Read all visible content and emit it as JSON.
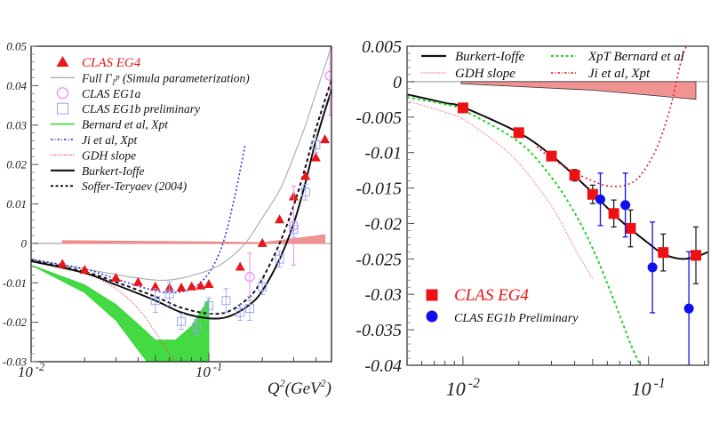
{
  "chart_data": [
    {
      "type": "scatter",
      "title": "",
      "xlabel": "Q^2(GeV^2)",
      "ylabel": "",
      "xscale": "log",
      "xlim": [
        0.01,
        0.49
      ],
      "ylim": [
        -0.03,
        0.05
      ],
      "yticks": [
        "0.05",
        "0.04",
        "0.03",
        "0.02",
        "0.01",
        "0",
        "-0.01",
        "-0.02",
        "-0.03"
      ],
      "ytick_values": [
        0.05,
        0.04,
        0.03,
        0.02,
        0.01,
        0,
        -0.01,
        -0.02,
        -0.03
      ],
      "xticks": [
        {
          "value": 0.01,
          "base": "10",
          "exp": "-2"
        },
        {
          "value": 0.1,
          "base": "10",
          "exp": "-1"
        }
      ],
      "legend_position": "top-left",
      "legend": [
        {
          "label": "CLAS EG4",
          "kind": "marker-triangle",
          "color": "#e8161b"
        },
        {
          "label": "Full Γ₁ᵖ (Simula parameterization)",
          "kind": "line-solid",
          "color": "#b0b0b0"
        },
        {
          "label": "CLAS EG1a",
          "kind": "marker-circle-open",
          "color": "#f27ef2"
        },
        {
          "label": "CLAS EG1b preliminary",
          "kind": "marker-square-open",
          "color": "#9aa6f0"
        },
        {
          "label": "Bernard et al, Xpt",
          "kind": "line-solid",
          "color": "#2fd62f"
        },
        {
          "label": "Ji et al, Xpt",
          "kind": "line-dashdot",
          "color": "#2a38e0"
        },
        {
          "label": "GDH slope",
          "kind": "line-dotted",
          "color": "#e84a4a"
        },
        {
          "label": "Burkert-Ioffe",
          "kind": "line-solid-thick",
          "color": "#111111"
        },
        {
          "label": "Soffer-Teryaev (2004)",
          "kind": "line-dashed",
          "color": "#111111"
        }
      ],
      "series": [
        {
          "name": "CLAS EG4",
          "type": "scatter",
          "marker": "triangle",
          "color": "#e8161b",
          "points": [
            [
              0.015,
              -0.0053
            ],
            [
              0.02,
              -0.0068
            ],
            [
              0.03,
              -0.0088
            ],
            [
              0.04,
              -0.0099
            ],
            [
              0.05,
              -0.011
            ],
            [
              0.06,
              -0.0113
            ],
            [
              0.07,
              -0.0113
            ],
            [
              0.08,
              -0.011
            ],
            [
              0.09,
              -0.0108
            ],
            [
              0.1,
              -0.0104
            ],
            [
              0.15,
              -0.006
            ],
            [
              0.2,
              0.0
            ],
            [
              0.25,
              0.006
            ],
            [
              0.3,
              0.0118
            ],
            [
              0.35,
              0.017
            ],
            [
              0.4,
              0.0217
            ],
            [
              0.45,
              0.0263
            ]
          ]
        },
        {
          "name": "CLAS EG1a",
          "type": "scatter",
          "marker": "circle-open",
          "color": "#f27ef2",
          "points": [
            [
              0.17,
              -0.0085,
              0.006
            ],
            [
              0.3,
              0.0045,
              0.01
            ],
            [
              0.48,
              0.0425,
              0.01
            ]
          ]
        },
        {
          "name": "CLAS EG1b preliminary",
          "type": "scatter",
          "marker": "square-open",
          "color": "#9aa6f0",
          "points": [
            [
              0.05,
              -0.0145,
              0.003
            ],
            [
              0.06,
              -0.0128,
              0.003
            ],
            [
              0.07,
              -0.0198,
              0.002
            ],
            [
              0.085,
              -0.0213,
              0.002
            ],
            [
              0.1,
              -0.0158,
              0.002
            ],
            [
              0.125,
              -0.0145,
              0.003
            ],
            [
              0.15,
              -0.0175,
              0.002
            ],
            [
              0.17,
              -0.0165,
              0.003
            ],
            [
              0.2,
              -0.011,
              0.002
            ],
            [
              0.25,
              -0.004,
              0.002
            ],
            [
              0.3,
              0.0035,
              0.002
            ],
            [
              0.35,
              0.013,
              0.002
            ],
            [
              0.4,
              0.025,
              0.002
            ]
          ]
        },
        {
          "name": "Full Γ1p (Simula parameterization)",
          "type": "line",
          "color": "#b0b0b0",
          "points": [
            [
              0.01,
              -0.0042
            ],
            [
              0.02,
              -0.0065
            ],
            [
              0.04,
              -0.0088
            ],
            [
              0.06,
              -0.0093
            ],
            [
              0.09,
              -0.0075
            ],
            [
              0.12,
              -0.005
            ],
            [
              0.16,
              0.0
            ],
            [
              0.2,
              0.0065
            ],
            [
              0.25,
              0.0135
            ],
            [
              0.3,
              0.022
            ],
            [
              0.35,
              0.03
            ],
            [
              0.4,
              0.038
            ],
            [
              0.49,
              0.05
            ]
          ]
        },
        {
          "name": "Bernard et al, Xpt",
          "type": "band",
          "color": "#2fd62f",
          "upper": [
            [
              0.01,
              -0.0055
            ],
            [
              0.02,
              -0.0105
            ],
            [
              0.03,
              -0.0155
            ],
            [
              0.04,
              -0.0205
            ],
            [
              0.05,
              -0.0245
            ],
            [
              0.065,
              -0.0245
            ],
            [
              0.08,
              -0.021
            ],
            [
              0.1,
              -0.014
            ]
          ],
          "lower": [
            [
              0.01,
              -0.0055
            ],
            [
              0.02,
              -0.0125
            ],
            [
              0.03,
              -0.0195
            ],
            [
              0.04,
              -0.027
            ],
            [
              0.045,
              -0.03
            ],
            [
              0.1,
              -0.03
            ]
          ]
        },
        {
          "name": "Ji et al, Xpt",
          "type": "line",
          "color": "#2a38e0",
          "points": [
            [
              0.01,
              -0.004
            ],
            [
              0.02,
              -0.0065
            ],
            [
              0.03,
              -0.009
            ],
            [
              0.045,
              -0.0115
            ],
            [
              0.06,
              -0.0125
            ],
            [
              0.08,
              -0.0115
            ],
            [
              0.1,
              -0.0075
            ],
            [
              0.12,
              0.0
            ],
            [
              0.14,
              0.012
            ],
            [
              0.16,
              0.025
            ]
          ]
        },
        {
          "name": "GDH slope",
          "type": "line",
          "color": "#e84a4a",
          "points": [
            [
              0.01,
              -0.0045
            ],
            [
              0.02,
              -0.0075
            ],
            [
              0.03,
              -0.0115
            ],
            [
              0.04,
              -0.0165
            ],
            [
              0.05,
              -0.0225
            ],
            [
              0.06,
              -0.028
            ],
            [
              0.065,
              -0.03
            ]
          ]
        },
        {
          "name": "Burkert-Ioffe",
          "type": "line",
          "color": "#111111",
          "points": [
            [
              0.01,
              -0.0045
            ],
            [
              0.02,
              -0.0075
            ],
            [
              0.03,
              -0.0105
            ],
            [
              0.05,
              -0.0145
            ],
            [
              0.07,
              -0.0175
            ],
            [
              0.1,
              -0.019
            ],
            [
              0.13,
              -0.0185
            ],
            [
              0.17,
              -0.0155
            ],
            [
              0.2,
              -0.012
            ],
            [
              0.25,
              -0.004
            ],
            [
              0.3,
              0.005
            ],
            [
              0.35,
              0.0155
            ],
            [
              0.4,
              0.026
            ],
            [
              0.49,
              0.039
            ]
          ]
        },
        {
          "name": "Soffer-Teryaev (2004)",
          "type": "line",
          "color": "#111111",
          "points": [
            [
              0.01,
              -0.0043
            ],
            [
              0.02,
              -0.0072
            ],
            [
              0.03,
              -0.0098
            ],
            [
              0.05,
              -0.0135
            ],
            [
              0.07,
              -0.0163
            ],
            [
              0.1,
              -0.0178
            ],
            [
              0.13,
              -0.0172
            ],
            [
              0.17,
              -0.0135
            ],
            [
              0.2,
              -0.009
            ],
            [
              0.25,
              0.0
            ],
            [
              0.3,
              0.0095
            ],
            [
              0.35,
              0.0195
            ],
            [
              0.4,
              0.029
            ],
            [
              0.49,
              0.0415
            ]
          ]
        },
        {
          "name": "EG4 systematic band",
          "type": "band",
          "color": "#f08080",
          "upper": [
            [
              0.015,
              0.0007
            ],
            [
              0.1,
              0.0004
            ],
            [
              0.2,
              0.0002
            ],
            [
              0.3,
              0.0012
            ],
            [
              0.45,
              0.0022
            ]
          ],
          "lower": [
            [
              0.015,
              0.0
            ],
            [
              0.45,
              0.0
            ]
          ]
        }
      ]
    },
    {
      "type": "scatter",
      "title": "",
      "xlabel": "",
      "ylabel": "",
      "xscale": "log",
      "xlim": [
        0.005,
        0.21
      ],
      "ylim": [
        -0.04,
        0.005
      ],
      "yticks": [
        "0.005",
        "0",
        "-0.005",
        "-0.01",
        "-0.015",
        "-0.02",
        "-0.025",
        "-0.03",
        "-0.035",
        "-0.04"
      ],
      "ytick_values": [
        0.005,
        0,
        -0.005,
        -0.01,
        -0.015,
        -0.02,
        -0.025,
        -0.03,
        -0.035,
        -0.04
      ],
      "xticks": [
        {
          "value": 0.01,
          "base": "10",
          "exp": "-2"
        },
        {
          "value": 0.1,
          "base": "10",
          "exp": "-1"
        }
      ],
      "legend_position": "top",
      "legend": [
        {
          "label": "Burkert-Ioffe",
          "kind": "line-solid-thick",
          "color": "#111111"
        },
        {
          "label": "XpT Bernard et al",
          "kind": "line-dashed",
          "color": "#22d422"
        },
        {
          "label": "GDH slope",
          "kind": "line-dotted",
          "color": "#f06a6a"
        },
        {
          "label": "Ji et al, Xpt",
          "kind": "line-dashdot",
          "color": "#e8161b"
        }
      ],
      "legend2_position": "bottom-left",
      "legend2": [
        {
          "label": "CLAS EG4",
          "kind": "marker-square",
          "color": "#ee1111"
        },
        {
          "label": "CLAS EG1b Preliminary",
          "kind": "marker-circle",
          "color": "#1010ee"
        }
      ],
      "series": [
        {
          "name": "CLAS EG4",
          "type": "scatter",
          "marker": "square",
          "color": "#ee1111",
          "points": [
            [
              0.01,
              -0.0037,
              0.0002
            ],
            [
              0.02,
              -0.0072,
              0.0003
            ],
            [
              0.03,
              -0.0105,
              0.0005
            ],
            [
              0.04,
              -0.0132,
              0.0008
            ],
            [
              0.05,
              -0.0159,
              0.0013
            ],
            [
              0.065,
              -0.0186,
              0.0019
            ],
            [
              0.08,
              -0.0207,
              0.0026
            ],
            [
              0.12,
              -0.0241,
              0.0026
            ],
            [
              0.18,
              -0.0245,
              0.004
            ]
          ]
        },
        {
          "name": "CLAS EG1b Preliminary",
          "type": "scatter",
          "marker": "circle",
          "color": "#1010ee",
          "points": [
            [
              0.055,
              -0.0166,
              0.0037
            ],
            [
              0.075,
              -0.0174,
              0.0045
            ],
            [
              0.105,
              -0.0262,
              0.0064
            ],
            [
              0.165,
              -0.032,
              0.008
            ]
          ]
        },
        {
          "name": "Burkert-Ioffe",
          "type": "line",
          "color": "#111111",
          "points": [
            [
              0.005,
              -0.0018
            ],
            [
              0.008,
              -0.003
            ],
            [
              0.01,
              -0.0036
            ],
            [
              0.02,
              -0.0072
            ],
            [
              0.03,
              -0.0104
            ],
            [
              0.04,
              -0.0133
            ],
            [
              0.05,
              -0.0157
            ],
            [
              0.065,
              -0.0187
            ],
            [
              0.08,
              -0.0208
            ],
            [
              0.1,
              -0.0228
            ],
            [
              0.12,
              -0.0243
            ],
            [
              0.15,
              -0.025
            ],
            [
              0.18,
              -0.0247
            ],
            [
              0.21,
              -0.024
            ]
          ]
        },
        {
          "name": "XpT Bernard et al",
          "type": "line",
          "color": "#22d422",
          "points": [
            [
              0.005,
              -0.0022
            ],
            [
              0.008,
              -0.0032
            ],
            [
              0.01,
              -0.004
            ],
            [
              0.02,
              -0.0085
            ],
            [
              0.03,
              -0.0135
            ],
            [
              0.04,
              -0.0185
            ],
            [
              0.05,
              -0.0235
            ],
            [
              0.06,
              -0.0285
            ],
            [
              0.07,
              -0.033
            ],
            [
              0.08,
              -0.037
            ],
            [
              0.09,
              -0.04
            ]
          ]
        },
        {
          "name": "GDH slope",
          "type": "line",
          "color": "#f06a6a",
          "points": [
            [
              0.005,
              -0.0027
            ],
            [
              0.008,
              -0.0043
            ],
            [
              0.01,
              -0.0053
            ],
            [
              0.015,
              -0.0085
            ],
            [
              0.02,
              -0.0115
            ],
            [
              0.03,
              -0.0175
            ],
            [
              0.04,
              -0.0235
            ],
            [
              0.05,
              -0.0278
            ]
          ]
        },
        {
          "name": "Ji et al, Xpt",
          "type": "line",
          "color": "#e8161b",
          "points": [
            [
              0.025,
              -0.0092
            ],
            [
              0.03,
              -0.0108
            ],
            [
              0.04,
              -0.0128
            ],
            [
              0.05,
              -0.014
            ],
            [
              0.06,
              -0.0147
            ],
            [
              0.075,
              -0.0146
            ],
            [
              0.09,
              -0.0133
            ],
            [
              0.11,
              -0.0095
            ],
            [
              0.13,
              -0.004
            ],
            [
              0.15,
              0.003
            ],
            [
              0.16,
              0.005
            ]
          ]
        },
        {
          "name": "EG4 systematic band",
          "type": "band",
          "color": "#f08080",
          "upper": [
            [
              0.0098,
              0.0
            ],
            [
              0.18,
              0.0
            ]
          ],
          "lower": [
            [
              0.0098,
              -0.0003
            ],
            [
              0.05,
              -0.0012
            ],
            [
              0.1,
              -0.0019
            ],
            [
              0.18,
              -0.0025
            ]
          ]
        }
      ]
    }
  ]
}
